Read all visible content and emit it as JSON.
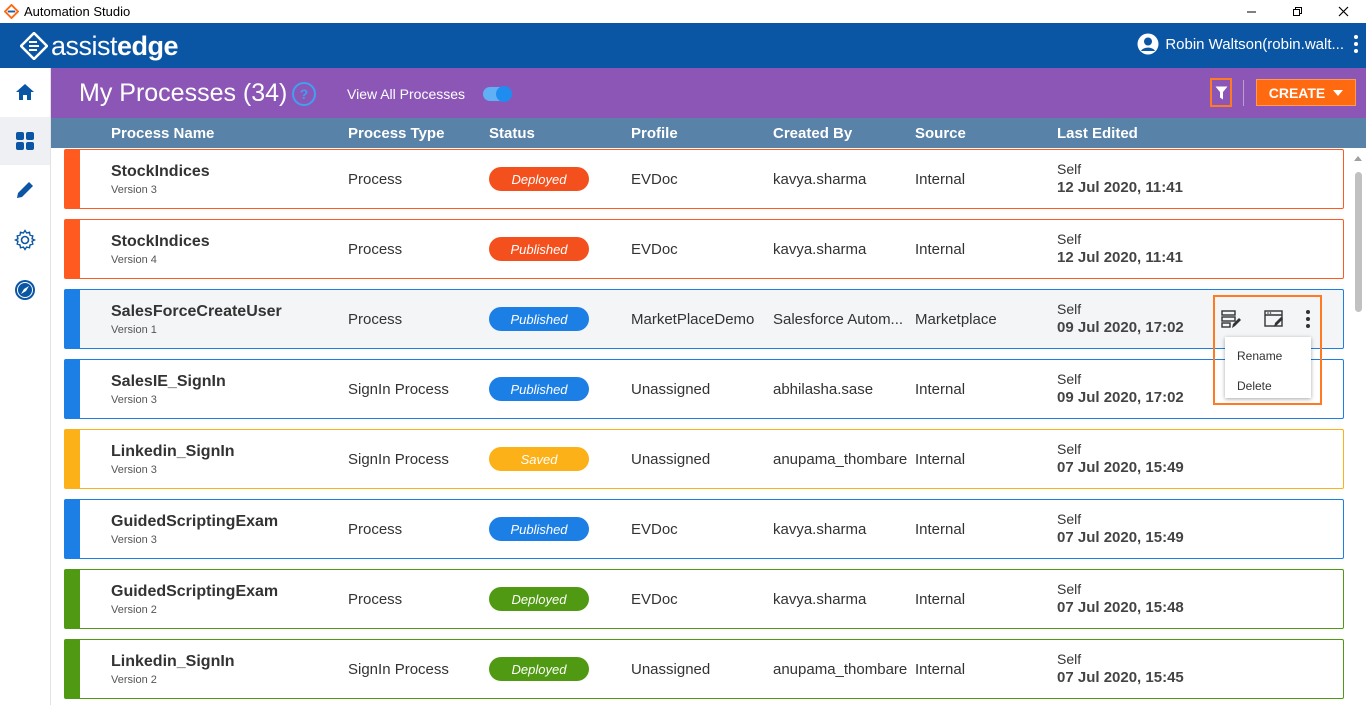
{
  "window": {
    "title": "Automation Studio"
  },
  "brand": {
    "logo_light": "assist",
    "logo_bold": "edge",
    "user": "Robin Waltson(robin.walt..."
  },
  "sidebar": {
    "items": [
      "home",
      "dashboard",
      "edit",
      "settings",
      "explore"
    ]
  },
  "header": {
    "title": "My Processes (34)",
    "help": "?",
    "view_all_label": "View All Processes",
    "view_all_enabled": true,
    "create_label": "CREATE"
  },
  "columns": [
    "Process Name",
    "Process Type",
    "Status",
    "Profile",
    "Created By",
    "Source",
    "Last Edited"
  ],
  "status_colors": {
    "Deployed": "#f4501e",
    "Published": "#1c7fe6",
    "Saved": "#fbb117",
    "DeployedGreen": "#4f9a12"
  },
  "rows": [
    {
      "name": "StockIndices",
      "version": "Version 3",
      "type": "Process",
      "status": "Deployed",
      "accent": "#ff5a1f",
      "badge": "#f4501e",
      "profile": "EVDoc",
      "created_by": "kavya.sharma",
      "source": "Internal",
      "edited_by": "Self",
      "edited": "12 Jul 2020, 11:41"
    },
    {
      "name": "StockIndices",
      "version": "Version 4",
      "type": "Process",
      "status": "Published",
      "accent": "#ff5a1f",
      "badge": "#f4501e",
      "profile": "EVDoc",
      "created_by": "kavya.sharma",
      "source": "Internal",
      "edited_by": "Self",
      "edited": "12 Jul 2020, 11:41"
    },
    {
      "name": "SalesForceCreateUser",
      "version": "Version 1",
      "type": "Process",
      "status": "Published",
      "accent": "#1c7fe6",
      "badge": "#1c7fe6",
      "profile": "MarketPlaceDemo",
      "created_by": "Salesforce Autom...",
      "source": "Marketplace",
      "edited_by": "Self",
      "edited": "09 Jul 2020, 17:02"
    },
    {
      "name": "SalesIE_SignIn",
      "version": "Version 3",
      "type": "SignIn Process",
      "status": "Published",
      "accent": "#1c7fe6",
      "badge": "#1c7fe6",
      "profile": "Unassigned",
      "created_by": "abhilasha.sase",
      "source": "Internal",
      "edited_by": "Self",
      "edited": "09 Jul 2020, 17:02"
    },
    {
      "name": "Linkedin_SignIn",
      "version": "Version 3",
      "type": "SignIn Process",
      "status": "Saved",
      "accent": "#fbb117",
      "badge": "#fbb117",
      "profile": "Unassigned",
      "created_by": "anupama_thombare",
      "source": "Internal",
      "edited_by": "Self",
      "edited": "07 Jul 2020, 15:49"
    },
    {
      "name": "GuidedScriptingExam",
      "version": "Version 3",
      "type": "Process",
      "status": "Published",
      "accent": "#1c7fe6",
      "badge": "#1c7fe6",
      "profile": "EVDoc",
      "created_by": "kavya.sharma",
      "source": "Internal",
      "edited_by": "Self",
      "edited": "07 Jul 2020, 15:49"
    },
    {
      "name": "GuidedScriptingExam",
      "version": "Version 2",
      "type": "Process",
      "status": "Deployed",
      "accent": "#4f9a12",
      "badge": "#4f9a12",
      "profile": "EVDoc",
      "created_by": "kavya.sharma",
      "source": "Internal",
      "edited_by": "Self",
      "edited": "07 Jul 2020, 15:48"
    },
    {
      "name": "Linkedin_SignIn",
      "version": "Version 2",
      "type": "SignIn Process",
      "status": "Deployed",
      "accent": "#4f9a12",
      "badge": "#4f9a12",
      "profile": "Unassigned",
      "created_by": "anupama_thombare",
      "source": "Internal",
      "edited_by": "Self",
      "edited": "07 Jul 2020, 15:45"
    }
  ],
  "row_menu": {
    "items": [
      "Rename",
      "Delete"
    ]
  }
}
